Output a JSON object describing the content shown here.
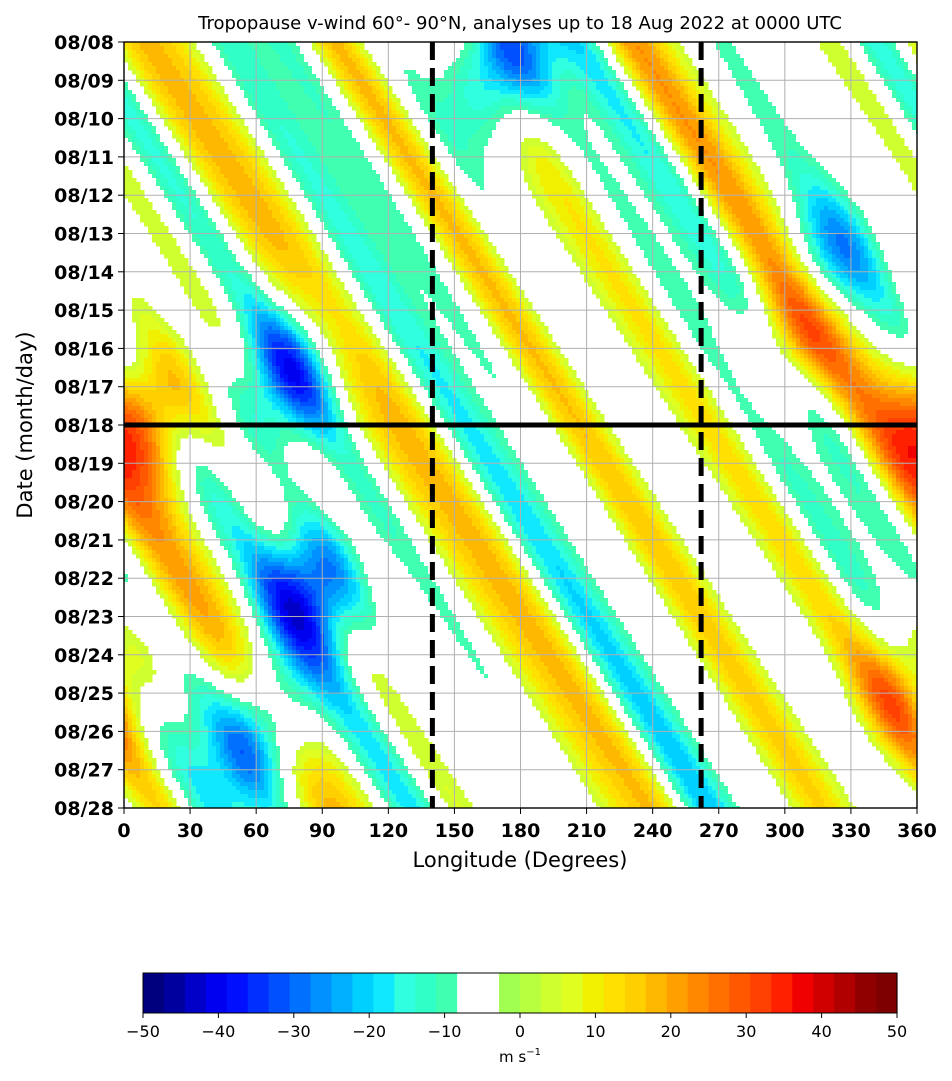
{
  "chart_data": {
    "type": "heatmap",
    "title": "Tropopause v-wind 60°- 90°N, analyses up to 18 Aug 2022 at 0000 UTC",
    "xlabel": "Longitude (Degrees)",
    "ylabel": "Date (month/day)",
    "x_ticks": [
      0,
      30,
      60,
      90,
      120,
      150,
      180,
      210,
      240,
      270,
      300,
      330,
      360
    ],
    "y_ticks": [
      "08/08",
      "08/09",
      "08/10",
      "08/11",
      "08/12",
      "08/13",
      "08/14",
      "08/15",
      "08/16",
      "08/17",
      "08/18",
      "08/19",
      "08/20",
      "08/21",
      "08/22",
      "08/23",
      "08/24",
      "08/25",
      "08/26",
      "08/27",
      "08/28"
    ],
    "xlim": [
      0,
      360
    ],
    "ylim": [
      "08/08",
      "08/28"
    ],
    "y_inverted": true,
    "grid": true,
    "reference_lines": [
      {
        "orientation": "horizontal",
        "style": "solid",
        "date": "08/18"
      },
      {
        "orientation": "vertical",
        "style": "dashed",
        "longitude": 140
      },
      {
        "orientation": "vertical",
        "style": "dashed",
        "longitude": 262
      }
    ],
    "features": [
      {
        "lon": 10,
        "day": 9.8,
        "value": 42
      },
      {
        "lon": 75,
        "day": 8.7,
        "value": -38
      },
      {
        "lon": 85,
        "day": 14.3,
        "value": -45
      },
      {
        "lon": 62,
        "day": 18.0,
        "value": -40
      },
      {
        "lon": 170,
        "day": 0.6,
        "value": -42
      },
      {
        "lon": 305,
        "day": 7.5,
        "value": 28
      },
      {
        "lon": 320,
        "day": 5.8,
        "value": -30
      },
      {
        "lon": 355,
        "day": 16.8,
        "value": 30
      }
    ],
    "colorbar": {
      "min": -50,
      "max": 50,
      "ticks": [
        -50,
        -40,
        -30,
        -20,
        -10,
        0,
        10,
        20,
        30,
        40,
        50
      ],
      "tick_labels": [
        "−50",
        "−40",
        "−30",
        "−20",
        "−10",
        "0",
        "10",
        "20",
        "30",
        "40",
        "50"
      ],
      "label_base": "m s",
      "label_exp": "−1",
      "colors": [
        "#00007f",
        "#00009f",
        "#0000c8",
        "#0000f0",
        "#0010ff",
        "#0030ff",
        "#0050ff",
        "#0070ff",
        "#0090ff",
        "#00b0ff",
        "#00d0ff",
        "#10e8ff",
        "#30ffe0",
        "#30ffc8",
        "#40ffb0",
        "#ffffff",
        "#ffffff",
        "#a0ff50",
        "#b8ff40",
        "#d0ff30",
        "#e0ff20",
        "#f0f000",
        "#ffe000",
        "#ffd000",
        "#ffb800",
        "#ffa000",
        "#ff8800",
        "#ff7000",
        "#ff5800",
        "#ff4000",
        "#ff2000",
        "#f00000",
        "#d00000",
        "#b00000",
        "#900000",
        "#7f0000"
      ]
    }
  }
}
